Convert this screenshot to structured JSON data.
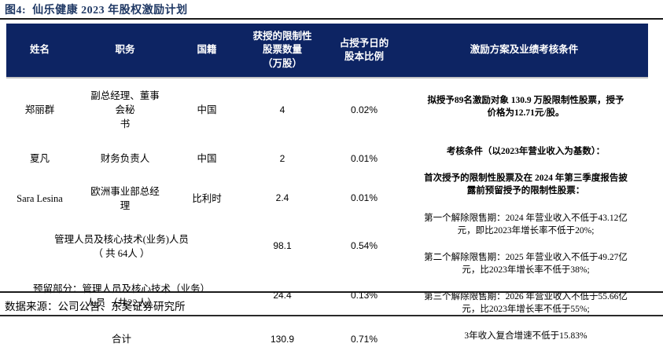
{
  "figure": {
    "title": "图4:  仙乐健康 2023 年股权激励计划"
  },
  "table": {
    "headers": {
      "name": "姓名",
      "position": "职务",
      "nationality": "国籍",
      "shares": "获授的限制性\n股票数量\n（万股）",
      "ratio": "占授予日的\n股本比例",
      "plan": "激励方案及业绩考核条件"
    },
    "rows": [
      {
        "name": "郑丽群",
        "position": "副总经理、董事\n会秘\n书",
        "nationality": "中国",
        "shares": "4",
        "ratio": "0.02%"
      },
      {
        "name": "夏凡",
        "position": "财务负责人",
        "nationality": "中国",
        "shares": "2",
        "ratio": "0.01%"
      },
      {
        "name": "Sara Lesina",
        "position": "欧洲事业部总经\n理",
        "nationality": "比利时",
        "shares": "2.4",
        "ratio": "0.01%"
      },
      {
        "group": "管理人员及核心技术(业务)人员\n（ 共 64人 ）",
        "shares": "98.1",
        "ratio": "0.54%"
      },
      {
        "group": "预留部分：管理人员及核心技术（业务）\n人员 （共22人）",
        "shares": "24.4",
        "ratio": "0.13%"
      },
      {
        "group": "合计",
        "shares": "130.9",
        "ratio": "0.71%"
      }
    ]
  },
  "plan": {
    "grant_summary": "拟授予89名激励对象 130.9 万股限制性股票，授予\n价格为12.71元/股。",
    "assessment_title": "考核条件（以2023年营业收入为基数）：",
    "assessment_scope": "首次授予的限制性股票及在 2024 年第三季度报告披\n露前预留授予的限制性股票：",
    "conditions": [
      "第一个解除限售期：2024 年营业收入不低于43.12亿\n元，即比2023年增长率不低于20%;",
      "第二个解除限售期：2025 年营业收入不低于49.27亿\n元，比2023年增长率不低于38%;",
      "第三个解除限售期：2026 年营业收入不低于55.66亿\n元，比2023年增长率不低于55%;",
      "3年收入复合增速不低于15.83%"
    ]
  },
  "footer": {
    "source": "数据来源：公司公告、东吴证券研究所"
  },
  "colors": {
    "header_bg": "#0d2463",
    "title_text": "#1f3864",
    "header_text": "#ffffff",
    "body_text": "#000000"
  }
}
